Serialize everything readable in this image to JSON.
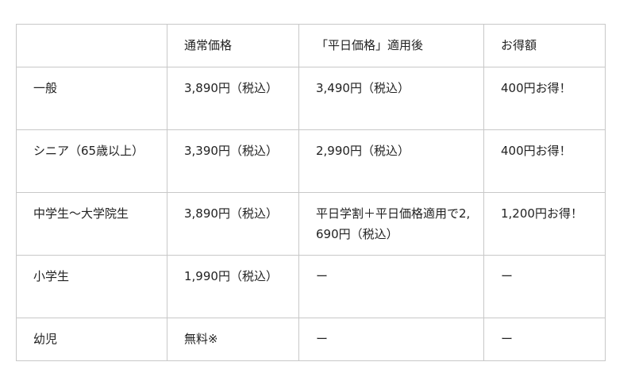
{
  "table": {
    "headers": [
      "",
      "通常価格",
      "「平日価格」適用後",
      "お得額"
    ],
    "rows": [
      [
        "一般",
        "3,890円（税込）",
        "3,490円（税込）",
        "400円お得！"
      ],
      [
        "シニア（65歳以上）",
        "3,390円（税込）",
        "2,990円（税込）",
        "400円お得！"
      ],
      [
        "中学生〜大学院生",
        "3,890円（税込）",
        "平日学割＋平日価格適用で2,690円（税込）",
        "1,200円お得！"
      ],
      [
        "小学生",
        "1,990円（税込）",
        "ー",
        "ー"
      ],
      [
        "幼児",
        "無料※",
        "ー",
        "ー"
      ]
    ]
  }
}
